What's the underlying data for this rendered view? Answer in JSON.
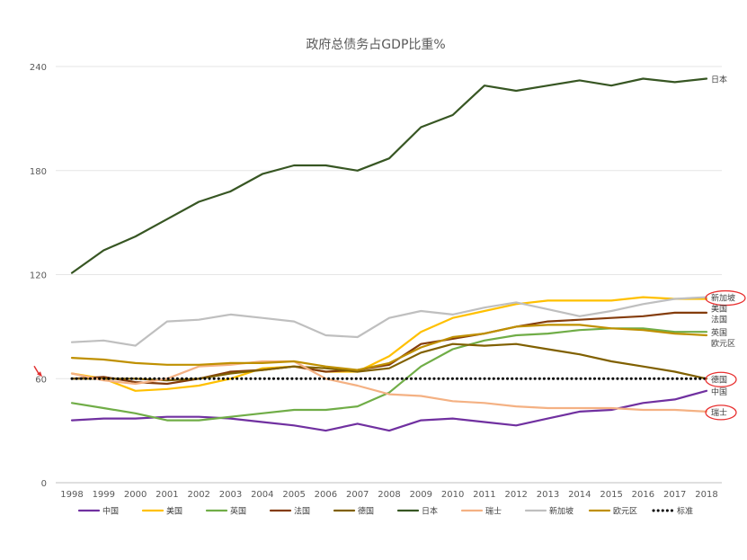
{
  "chart_data": {
    "type": "line",
    "title": "政府总债务占GDP比重%",
    "xlabel": "",
    "ylabel": "",
    "x": [
      "1998",
      "1999",
      "2000",
      "2001",
      "2002",
      "2003",
      "2004",
      "2005",
      "2006",
      "2007",
      "2008",
      "2009",
      "2010",
      "2011",
      "2012",
      "2013",
      "2014",
      "2015",
      "2016",
      "2017",
      "2018"
    ],
    "ylim": [
      0,
      240
    ],
    "yticks": [
      0,
      60,
      120,
      180,
      240
    ],
    "grid": true,
    "legend": "bottom",
    "series": [
      {
        "name": "中国",
        "color": "#7030A0",
        "style": "solid",
        "label": "中国",
        "label_color": "#C00000",
        "values": [
          36,
          37,
          37,
          38,
          38,
          37,
          35,
          33,
          30,
          34,
          30,
          36,
          37,
          35,
          33,
          37,
          41,
          42,
          46,
          48,
          53
        ]
      },
      {
        "name": "美国",
        "color": "#FFC000",
        "style": "solid",
        "label": "美国",
        "label_color": "#404040",
        "values": [
          63,
          60,
          53,
          54,
          56,
          60,
          66,
          67,
          64,
          64,
          73,
          87,
          95,
          99,
          103,
          105,
          105,
          105,
          107,
          106,
          106
        ]
      },
      {
        "name": "英国",
        "color": "#70AD47",
        "style": "solid",
        "label": "英国",
        "label_color": "#404040",
        "values": [
          46,
          43,
          40,
          36,
          36,
          38,
          40,
          42,
          42,
          44,
          52,
          67,
          77,
          82,
          85,
          86,
          88,
          89,
          89,
          87,
          87
        ]
      },
      {
        "name": "法国",
        "color": "#843C0C",
        "style": "solid",
        "label": "法国",
        "label_color": "#404040",
        "values": [
          60,
          61,
          58,
          57,
          60,
          64,
          65,
          67,
          64,
          65,
          68,
          80,
          83,
          86,
          90,
          93,
          94,
          95,
          96,
          98,
          98
        ]
      },
      {
        "name": "德国",
        "color": "#806000",
        "style": "solid",
        "label": "德国",
        "label_color": "#404040",
        "values": [
          60,
          60,
          60,
          59,
          60,
          63,
          65,
          67,
          66,
          64,
          66,
          75,
          80,
          79,
          80,
          77,
          74,
          70,
          67,
          64,
          60
        ]
      },
      {
        "name": "日本",
        "color": "#375623",
        "style": "solid",
        "label": "日本",
        "label_color": "#404040",
        "values": [
          121,
          134,
          142,
          152,
          162,
          168,
          178,
          183,
          183,
          180,
          187,
          205,
          212,
          229,
          226,
          229,
          232,
          229,
          233,
          231,
          233
        ]
      },
      {
        "name": "瑞士",
        "color": "#F4B183",
        "style": "solid",
        "label": "瑞士",
        "label_color": "#404040",
        "values": [
          63,
          59,
          57,
          60,
          67,
          68,
          70,
          70,
          60,
          56,
          51,
          50,
          47,
          46,
          44,
          43,
          43,
          43,
          42,
          42,
          41
        ]
      },
      {
        "name": "新加坡",
        "color": "#BFBFBF",
        "style": "solid",
        "label": "新加坡",
        "label_color": "#404040",
        "values": [
          81,
          82,
          79,
          93,
          94,
          97,
          95,
          93,
          85,
          84,
          95,
          99,
          97,
          101,
          104,
          100,
          96,
          99,
          103,
          106,
          107
        ]
      },
      {
        "name": "欧元区",
        "color": "#BF9000",
        "style": "solid",
        "label": "欧元区",
        "label_color": "#404040",
        "values": [
          72,
          71,
          69,
          68,
          68,
          69,
          69,
          70,
          67,
          65,
          69,
          78,
          84,
          86,
          90,
          91,
          91,
          89,
          88,
          86,
          85
        ]
      },
      {
        "name": "标准",
        "color": "#000000",
        "style": "dotted",
        "label": "",
        "label_color": "#404040",
        "values": [
          60,
          60,
          60,
          60,
          60,
          60,
          60,
          60,
          60,
          60,
          60,
          60,
          60,
          60,
          60,
          60,
          60,
          60,
          60,
          60,
          60
        ]
      }
    ],
    "circled_labels": [
      "新加坡",
      "德国",
      "瑞士"
    ],
    "circle_color": "#E83030",
    "arrow_color": "#E03030"
  }
}
